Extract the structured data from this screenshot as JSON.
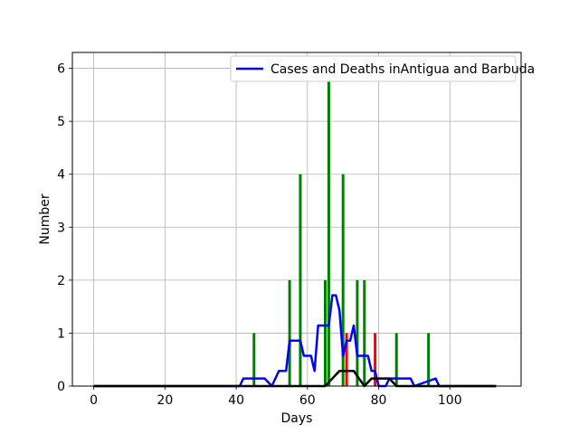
{
  "chart_data": {
    "type": "line",
    "title": "",
    "xlabel": "Days",
    "ylabel": "Number",
    "xlim": [
      -6,
      120
    ],
    "ylim": [
      0,
      6.3
    ],
    "xticks": [
      0,
      20,
      40,
      60,
      80,
      100
    ],
    "yticks": [
      0,
      1,
      2,
      3,
      4,
      5,
      6
    ],
    "grid": true,
    "legend": {
      "position": "top-right",
      "entries": [
        "Cases and Deaths inAntigua and Barbuda"
      ]
    },
    "bars_cases": {
      "color": "#008000",
      "points": [
        [
          45,
          1
        ],
        [
          55,
          2
        ],
        [
          58,
          4
        ],
        [
          65,
          2
        ],
        [
          66,
          5.75
        ],
        [
          70,
          4
        ],
        [
          74,
          2
        ],
        [
          76,
          2
        ],
        [
          85,
          1
        ],
        [
          94,
          1
        ]
      ]
    },
    "bars_deaths": {
      "color": "#ff0000",
      "points": [
        [
          71,
          1
        ],
        [
          79,
          1
        ]
      ]
    },
    "series": [
      {
        "name": "Cases and Deaths inAntigua and Barbuda",
        "color": "#0000ff",
        "x": [
          0,
          41,
          42,
          48,
          50,
          52,
          54,
          55,
          58,
          59,
          61,
          62,
          63,
          66,
          67,
          68,
          69,
          70,
          71,
          72,
          73,
          74,
          77,
          78,
          79,
          80,
          81,
          82,
          83,
          89,
          90,
          96,
          97,
          113
        ],
        "y": [
          0,
          0,
          0.143,
          0.143,
          0,
          0.286,
          0.286,
          0.857,
          0.857,
          0.571,
          0.571,
          0.286,
          1.143,
          1.143,
          1.714,
          1.714,
          1.429,
          0.571,
          0.857,
          0.857,
          1.143,
          0.571,
          0.571,
          0.286,
          0.286,
          0,
          0,
          0,
          0.143,
          0.143,
          0,
          0.143,
          0,
          0
        ]
      },
      {
        "name": "",
        "color": "#000000",
        "x": [
          0,
          65,
          69,
          73,
          76,
          78,
          83,
          85,
          113
        ],
        "y": [
          0,
          0,
          0.286,
          0.286,
          0,
          0.143,
          0.143,
          0,
          0
        ]
      }
    ]
  }
}
